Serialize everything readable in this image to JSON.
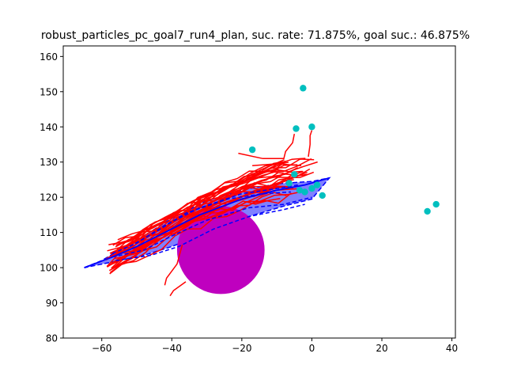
{
  "chart_data": {
    "type": "scatter",
    "title": "robust_particles_pc_goal7_run4_plan, suc. rate: 71.875%, goal suc.: 46.875%",
    "xlabel": "",
    "ylabel": "",
    "xlim": [
      -71,
      41
    ],
    "ylim": [
      80,
      163
    ],
    "xticks": [
      -60,
      -40,
      -20,
      0,
      20,
      40
    ],
    "yticks": [
      80,
      90,
      100,
      110,
      120,
      130,
      140,
      150,
      160
    ],
    "grid": false,
    "colors": {
      "trajectory": "#ff0000",
      "plan": "#0000ff",
      "band": "#8080ff",
      "obstacle": "#bf00bf",
      "goal": "#00bfbf"
    },
    "obstacle": {
      "center": [
        -26,
        105
      ],
      "radius": 12.5
    },
    "goal_points": [
      {
        "x": -2.5,
        "y": 151
      },
      {
        "x": -4.5,
        "y": 139.5
      },
      {
        "x": 0,
        "y": 140
      },
      {
        "x": -17,
        "y": 133.5
      },
      {
        "x": -5,
        "y": 126.5
      },
      {
        "x": -6.5,
        "y": 124
      },
      {
        "x": -3.5,
        "y": 122
      },
      {
        "x": -2,
        "y": 121.5
      },
      {
        "x": 0,
        "y": 122.5
      },
      {
        "x": 1.5,
        "y": 123.5
      },
      {
        "x": 3,
        "y": 120.5
      },
      {
        "x": 33,
        "y": 116
      },
      {
        "x": 35.5,
        "y": 118
      }
    ],
    "plan_mean": [
      [
        -65,
        100
      ],
      [
        -57,
        103
      ],
      [
        -50,
        106
      ],
      [
        -42,
        110
      ],
      [
        -32,
        115
      ],
      [
        -20,
        119.5
      ],
      [
        -10,
        122
      ],
      [
        -2,
        123.5
      ],
      [
        5,
        125.5
      ]
    ],
    "plan_band_upper": [
      [
        -65,
        100
      ],
      [
        -60,
        102
      ],
      [
        -55,
        105
      ],
      [
        -48,
        109
      ],
      [
        -40,
        114
      ],
      [
        -30,
        119
      ],
      [
        -18,
        122.5
      ],
      [
        -8,
        124
      ],
      [
        0,
        124.5
      ],
      [
        5,
        125.5
      ]
    ],
    "plan_band_lower": [
      [
        -65,
        100
      ],
      [
        -60,
        101
      ],
      [
        -55,
        102
      ],
      [
        -48,
        103.5
      ],
      [
        -40,
        106
      ],
      [
        -30,
        110
      ],
      [
        -18,
        114.5
      ],
      [
        -8,
        117.5
      ],
      [
        0,
        119.5
      ],
      [
        5,
        125.5
      ]
    ],
    "plan_dashed": [
      [
        [
          -57,
          104
        ],
        [
          -50,
          107
        ],
        [
          -42,
          112
        ],
        [
          -32,
          117
        ],
        [
          -20,
          121
        ],
        [
          -10,
          122.5
        ],
        [
          -4,
          123.5
        ]
      ],
      [
        [
          -57,
          103
        ],
        [
          -48,
          105
        ],
        [
          -40,
          109
        ],
        [
          -30,
          113.5
        ],
        [
          -18,
          117
        ],
        [
          -8,
          118
        ],
        [
          0,
          120
        ]
      ],
      [
        [
          -56,
          102
        ],
        [
          -46,
          103.5
        ],
        [
          -38,
          106
        ],
        [
          -28,
          111
        ],
        [
          -18,
          114.5
        ],
        [
          -8,
          116.5
        ],
        [
          -2,
          118
        ]
      ],
      [
        [
          -52,
          106
        ],
        [
          -44,
          110.5
        ],
        [
          -36,
          115.5
        ],
        [
          -24,
          119.5
        ],
        [
          -14,
          121
        ],
        [
          -6,
          121.5
        ]
      ]
    ],
    "stray_trajectories": [
      [
        [
          -21,
          132.5
        ],
        [
          -14,
          131
        ],
        [
          -8,
          131
        ],
        [
          -7.5,
          133
        ],
        [
          -5.5,
          135.5
        ],
        [
          -5,
          138
        ]
      ],
      [
        [
          -17,
          129
        ],
        [
          -10,
          129.5
        ],
        [
          -3,
          129
        ]
      ],
      [
        [
          -1,
          131.5
        ],
        [
          -0.5,
          135
        ],
        [
          -0.5,
          137.5
        ],
        [
          0,
          139
        ]
      ],
      [
        [
          -36,
          96
        ],
        [
          -39.5,
          93.5
        ],
        [
          -40.5,
          92
        ]
      ],
      [
        [
          -37,
          106.5
        ],
        [
          -38.5,
          101
        ],
        [
          -41.5,
          97
        ],
        [
          -42,
          95
        ]
      ]
    ]
  }
}
